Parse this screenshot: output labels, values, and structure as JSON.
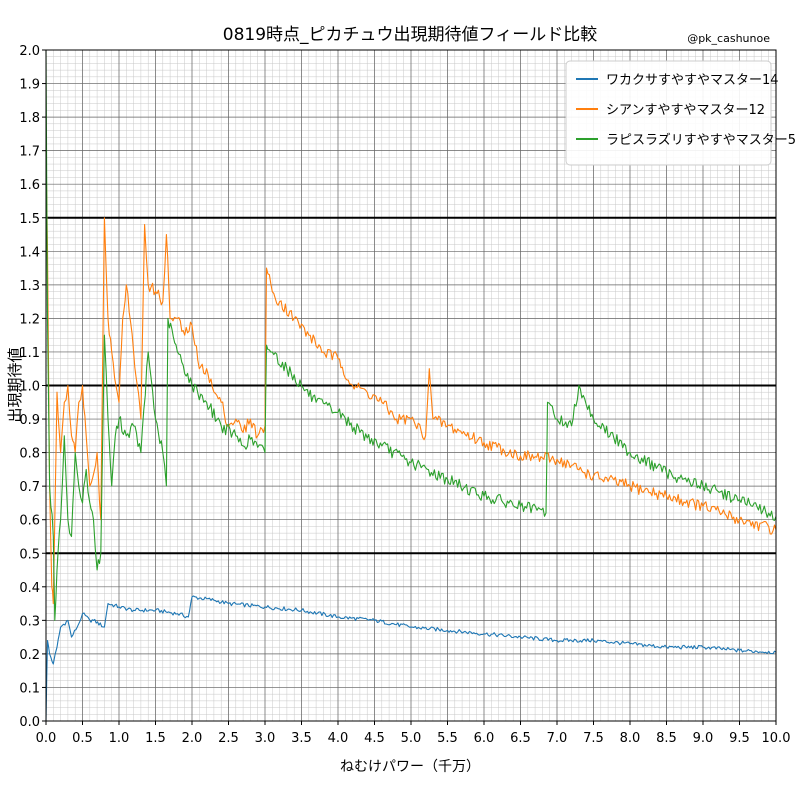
{
  "chart_data": {
    "type": "line",
    "title": "0819時点_ピカチュウ出現期待値フィールド比較",
    "watermark": "@pk_cashunoe",
    "xlabel": "ねむけパワー（千万）",
    "ylabel": "出現期待値",
    "xlim": [
      0,
      10
    ],
    "ylim": [
      0,
      2
    ],
    "xticks": [
      "0.0",
      "0.5",
      "1.0",
      "1.5",
      "2.0",
      "2.5",
      "3.0",
      "3.5",
      "4.0",
      "4.5",
      "5.0",
      "5.5",
      "6.0",
      "6.5",
      "7.0",
      "7.5",
      "8.0",
      "8.5",
      "9.0",
      "9.5",
      "10.0"
    ],
    "yticks": [
      "0.0",
      "0.1",
      "0.2",
      "0.3",
      "0.4",
      "0.5",
      "0.6",
      "0.7",
      "0.8",
      "0.9",
      "1.0",
      "1.1",
      "1.2",
      "1.3",
      "1.4",
      "1.5",
      "1.6",
      "1.7",
      "1.8",
      "1.9",
      "2.0"
    ],
    "reference_lines_y": [
      0.5,
      1.0,
      1.5
    ],
    "grid": true,
    "legend_position": "top-right",
    "series": [
      {
        "name": "ワカクサすやすやマスター14",
        "color": "#1f77b4",
        "points": [
          [
            0.0,
            0.0
          ],
          [
            0.02,
            0.24
          ],
          [
            0.05,
            0.2
          ],
          [
            0.1,
            0.17
          ],
          [
            0.15,
            0.22
          ],
          [
            0.2,
            0.28
          ],
          [
            0.3,
            0.3
          ],
          [
            0.35,
            0.25
          ],
          [
            0.45,
            0.29
          ],
          [
            0.5,
            0.32
          ],
          [
            0.6,
            0.3
          ],
          [
            0.65,
            0.3
          ],
          [
            0.8,
            0.28
          ],
          [
            0.85,
            0.35
          ],
          [
            1.0,
            0.34
          ],
          [
            1.2,
            0.33
          ],
          [
            1.5,
            0.33
          ],
          [
            1.8,
            0.32
          ],
          [
            1.95,
            0.31
          ],
          [
            2.0,
            0.37
          ],
          [
            2.3,
            0.36
          ],
          [
            2.5,
            0.35
          ],
          [
            3.0,
            0.34
          ],
          [
            3.5,
            0.33
          ],
          [
            4.0,
            0.31
          ],
          [
            4.5,
            0.3
          ],
          [
            5.0,
            0.28
          ],
          [
            5.5,
            0.27
          ],
          [
            6.0,
            0.26
          ],
          [
            6.5,
            0.25
          ],
          [
            7.0,
            0.24
          ],
          [
            7.5,
            0.24
          ],
          [
            8.0,
            0.23
          ],
          [
            8.5,
            0.22
          ],
          [
            9.0,
            0.22
          ],
          [
            9.5,
            0.21
          ],
          [
            10.0,
            0.205
          ]
        ]
      },
      {
        "name": "シアンすやすやマスター12",
        "color": "#ff7f0e",
        "points": [
          [
            0.0,
            1.7
          ],
          [
            0.02,
            1.4
          ],
          [
            0.05,
            0.7
          ],
          [
            0.08,
            0.4
          ],
          [
            0.1,
            0.35
          ],
          [
            0.12,
            0.6
          ],
          [
            0.15,
            0.98
          ],
          [
            0.2,
            0.8
          ],
          [
            0.25,
            0.95
          ],
          [
            0.3,
            1.0
          ],
          [
            0.35,
            0.85
          ],
          [
            0.4,
            0.8
          ],
          [
            0.45,
            0.95
          ],
          [
            0.5,
            1.0
          ],
          [
            0.55,
            0.85
          ],
          [
            0.6,
            0.7
          ],
          [
            0.7,
            0.8
          ],
          [
            0.75,
            0.6
          ],
          [
            0.8,
            1.5
          ],
          [
            0.85,
            1.2
          ],
          [
            0.9,
            1.1
          ],
          [
            1.0,
            0.95
          ],
          [
            1.05,
            1.2
          ],
          [
            1.1,
            1.3
          ],
          [
            1.2,
            1.1
          ],
          [
            1.25,
            1.0
          ],
          [
            1.3,
            0.9
          ],
          [
            1.35,
            1.48
          ],
          [
            1.4,
            1.3
          ],
          [
            1.5,
            1.28
          ],
          [
            1.6,
            1.25
          ],
          [
            1.65,
            1.45
          ],
          [
            1.7,
            1.2
          ],
          [
            1.8,
            1.2
          ],
          [
            1.9,
            1.15
          ],
          [
            2.0,
            1.18
          ],
          [
            2.1,
            1.05
          ],
          [
            2.2,
            1.05
          ],
          [
            2.3,
            0.98
          ],
          [
            2.4,
            0.95
          ],
          [
            2.5,
            0.88
          ],
          [
            2.6,
            0.9
          ],
          [
            2.7,
            0.86
          ],
          [
            2.8,
            0.9
          ],
          [
            2.9,
            0.85
          ],
          [
            3.0,
            0.88
          ],
          [
            3.02,
            1.35
          ],
          [
            3.1,
            1.28
          ],
          [
            3.2,
            1.25
          ],
          [
            3.4,
            1.2
          ],
          [
            3.6,
            1.15
          ],
          [
            3.8,
            1.1
          ],
          [
            4.0,
            1.08
          ],
          [
            4.2,
            1.0
          ],
          [
            4.4,
            0.98
          ],
          [
            4.6,
            0.95
          ],
          [
            4.8,
            0.9
          ],
          [
            5.0,
            0.9
          ],
          [
            5.2,
            0.85
          ],
          [
            5.25,
            1.05
          ],
          [
            5.3,
            0.9
          ],
          [
            5.5,
            0.88
          ],
          [
            6.0,
            0.83
          ],
          [
            6.5,
            0.79
          ],
          [
            7.0,
            0.78
          ],
          [
            7.5,
            0.73
          ],
          [
            8.0,
            0.7
          ],
          [
            8.5,
            0.67
          ],
          [
            9.0,
            0.64
          ],
          [
            9.5,
            0.6
          ],
          [
            10.0,
            0.57
          ]
        ]
      },
      {
        "name": "ラピスラズリすやすやマスター5",
        "color": "#2ca02c",
        "points": [
          [
            0.0,
            2.0
          ],
          [
            0.02,
            1.2
          ],
          [
            0.05,
            0.7
          ],
          [
            0.1,
            0.55
          ],
          [
            0.12,
            0.3
          ],
          [
            0.15,
            0.45
          ],
          [
            0.2,
            0.6
          ],
          [
            0.25,
            0.85
          ],
          [
            0.3,
            0.6
          ],
          [
            0.35,
            0.55
          ],
          [
            0.4,
            0.8
          ],
          [
            0.45,
            0.7
          ],
          [
            0.5,
            0.65
          ],
          [
            0.55,
            0.75
          ],
          [
            0.6,
            0.65
          ],
          [
            0.65,
            0.6
          ],
          [
            0.7,
            0.45
          ],
          [
            0.75,
            0.5
          ],
          [
            0.8,
            1.15
          ],
          [
            0.85,
            0.9
          ],
          [
            0.9,
            0.7
          ],
          [
            0.95,
            0.85
          ],
          [
            1.0,
            0.9
          ],
          [
            1.1,
            0.85
          ],
          [
            1.2,
            0.88
          ],
          [
            1.3,
            0.8
          ],
          [
            1.4,
            1.1
          ],
          [
            1.5,
            0.9
          ],
          [
            1.6,
            0.8
          ],
          [
            1.65,
            0.7
          ],
          [
            1.67,
            1.2
          ],
          [
            1.8,
            1.1
          ],
          [
            2.0,
            1.0
          ],
          [
            2.2,
            0.95
          ],
          [
            2.4,
            0.88
          ],
          [
            2.6,
            0.85
          ],
          [
            2.7,
            0.82
          ],
          [
            2.8,
            0.84
          ],
          [
            3.0,
            0.8
          ],
          [
            3.02,
            1.12
          ],
          [
            3.1,
            1.1
          ],
          [
            3.3,
            1.05
          ],
          [
            3.5,
            1.0
          ],
          [
            3.7,
            0.95
          ],
          [
            4.0,
            0.92
          ],
          [
            4.3,
            0.86
          ],
          [
            4.6,
            0.82
          ],
          [
            5.0,
            0.77
          ],
          [
            5.5,
            0.72
          ],
          [
            6.0,
            0.67
          ],
          [
            6.5,
            0.64
          ],
          [
            6.85,
            0.62
          ],
          [
            6.87,
            0.95
          ],
          [
            7.0,
            0.9
          ],
          [
            7.2,
            0.88
          ],
          [
            7.3,
            1.0
          ],
          [
            7.5,
            0.9
          ],
          [
            8.0,
            0.8
          ],
          [
            8.5,
            0.74
          ],
          [
            9.0,
            0.7
          ],
          [
            9.5,
            0.66
          ],
          [
            10.0,
            0.61
          ]
        ]
      }
    ]
  }
}
